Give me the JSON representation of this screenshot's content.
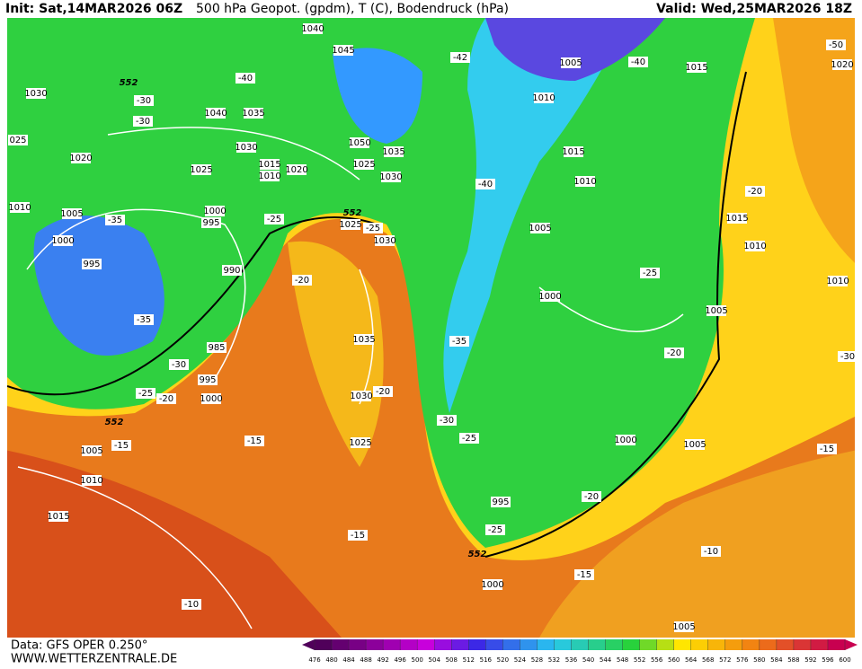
{
  "header": {
    "init": "Init: Sat,14MAR2026 06Z",
    "title": "500 hPa Geopot. (gpdm), T (C), Bodendruck (hPa)",
    "valid": "Valid: Wed,25MAR2026 18Z"
  },
  "footer": {
    "data": "Data: GFS OPER 0.250°",
    "site": "WWW.WETTERZENTRALE.DE"
  },
  "colorbar": {
    "levels": [
      476,
      480,
      484,
      488,
      492,
      496,
      500,
      504,
      508,
      512,
      516,
      520,
      524,
      528,
      532,
      536,
      540,
      544,
      548,
      552,
      556,
      560,
      564,
      568,
      572,
      576,
      580,
      584,
      588,
      592,
      596,
      600
    ]
  },
  "map": {
    "isobar_labels": [
      "1040",
      "1045",
      "1005",
      "1015",
      "1020",
      "1030",
      "1040",
      "1035",
      "1010",
      "1030",
      "1050",
      "1035",
      "1015",
      "1020",
      "1025",
      "1015",
      "1010",
      "1020",
      "1025",
      "1030",
      "1010",
      "1010",
      "1005",
      "1000",
      "995",
      "1025",
      "1030",
      "1005",
      "1015",
      "1010",
      "1000",
      "995",
      "990",
      "1010",
      "1000",
      "1005",
      "1035",
      "985",
      "995",
      "1000",
      "1030",
      "1025",
      "1000",
      "1005",
      "1005",
      "1010",
      "995",
      "1015",
      "1000",
      "1005",
      "025"
    ],
    "temperature_labels": [
      "-40",
      "-42",
      "-40",
      "-50",
      "-30",
      "-30",
      "-40",
      "-35",
      "-25",
      "-25",
      "-20",
      "-25",
      "-20",
      "-35",
      "-35",
      "-20",
      "-30",
      "-25",
      "-20",
      "-20",
      "-30",
      "-25",
      "-15",
      "-15",
      "-15",
      "-20",
      "-25",
      "-15",
      "-10",
      "-15",
      "-10",
      "-30"
    ],
    "geopotential_labels": [
      "552",
      "552",
      "552",
      "552"
    ]
  }
}
